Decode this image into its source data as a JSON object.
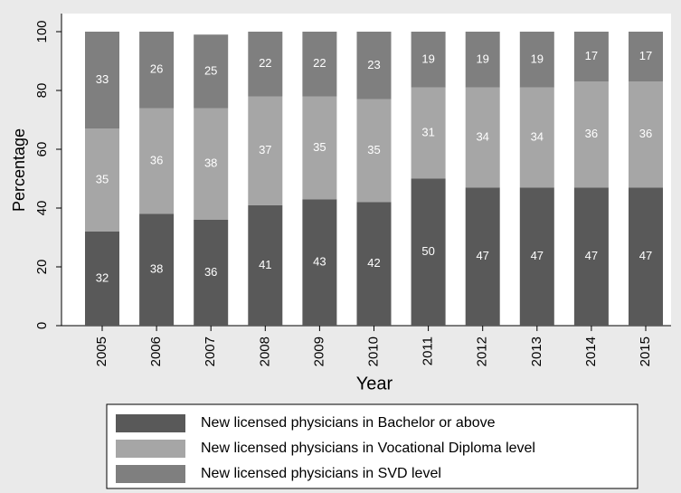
{
  "chart_data": {
    "type": "stacked_bar",
    "x_label": "Year",
    "y_label": "Percentage",
    "categories": [
      "2005",
      "2006",
      "2007",
      "2008",
      "2009",
      "2010",
      "2011",
      "2012",
      "2013",
      "2014",
      "2015"
    ],
    "series": [
      {
        "name": "New licensed physicians in Bachelor or above",
        "color": "#595959",
        "values": [
          32,
          38,
          36,
          41,
          43,
          42,
          50,
          47,
          47,
          47,
          47
        ]
      },
      {
        "name": "New licensed physicians in Vocational Diploma level",
        "color": "#a6a6a6",
        "values": [
          35,
          36,
          38,
          37,
          35,
          35,
          31,
          34,
          34,
          36,
          36
        ]
      },
      {
        "name": "New licensed physicians in SVD level",
        "color": "#7f7f7f",
        "values": [
          33,
          26,
          25,
          22,
          22,
          23,
          19,
          19,
          19,
          17,
          17
        ]
      }
    ],
    "ylim": [
      0,
      100
    ],
    "yticks": [
      0,
      20,
      40,
      60,
      80,
      100
    ],
    "grid": false
  }
}
